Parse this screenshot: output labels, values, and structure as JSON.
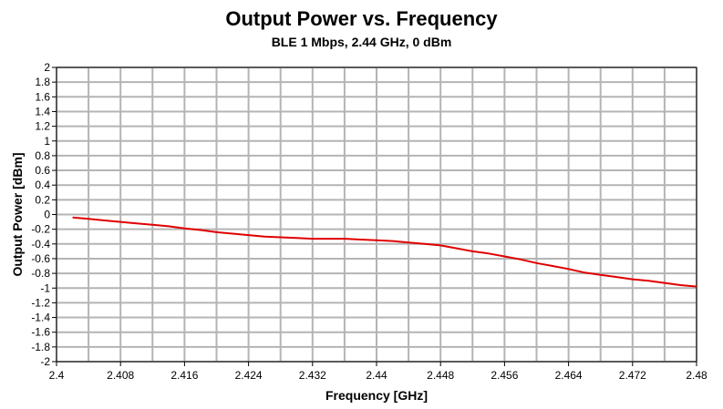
{
  "chart_data": {
    "type": "line",
    "title": "Output Power vs. Frequency",
    "subtitle": "BLE 1 Mbps, 2.44 GHz, 0 dBm",
    "xlabel": "Frequency [GHz]",
    "ylabel": "Output Power [dBm]",
    "xlim": [
      2.4,
      2.48
    ],
    "ylim": [
      -2,
      2
    ],
    "x_ticks": [
      "2.4",
      "2.408",
      "2.416",
      "2.424",
      "2.432",
      "2.44",
      "2.448",
      "2.456",
      "2.464",
      "2.472",
      "2.48"
    ],
    "y_ticks": [
      "2",
      "1.8",
      "1.6",
      "1.4",
      "1.2",
      "1",
      "0.8",
      "0.6",
      "0.4",
      "0.2",
      "0",
      "-0.2",
      "-0.4",
      "-0.6",
      "-0.8",
      "-1",
      "-1.2",
      "-1.4",
      "-1.6",
      "-1.8",
      "-2"
    ],
    "x_gridlines": [
      2.4,
      2.404,
      2.408,
      2.412,
      2.416,
      2.42,
      2.424,
      2.428,
      2.432,
      2.436,
      2.44,
      2.444,
      2.448,
      2.452,
      2.456,
      2.46,
      2.464,
      2.468,
      2.472,
      2.476,
      2.48
    ],
    "grid": true,
    "series": [
      {
        "name": "Output Power",
        "color": "#e00000",
        "x": [
          2.402,
          2.404,
          2.406,
          2.408,
          2.41,
          2.412,
          2.414,
          2.416,
          2.418,
          2.42,
          2.422,
          2.424,
          2.426,
          2.428,
          2.43,
          2.432,
          2.434,
          2.436,
          2.438,
          2.44,
          2.442,
          2.444,
          2.446,
          2.448,
          2.45,
          2.452,
          2.454,
          2.456,
          2.458,
          2.46,
          2.462,
          2.464,
          2.466,
          2.468,
          2.47,
          2.472,
          2.474,
          2.476,
          2.478,
          2.48
        ],
        "values": [
          -0.04,
          -0.06,
          -0.08,
          -0.1,
          -0.12,
          -0.14,
          -0.16,
          -0.19,
          -0.21,
          -0.24,
          -0.26,
          -0.28,
          -0.3,
          -0.31,
          -0.32,
          -0.33,
          -0.33,
          -0.33,
          -0.34,
          -0.35,
          -0.36,
          -0.38,
          -0.4,
          -0.42,
          -0.46,
          -0.5,
          -0.53,
          -0.57,
          -0.61,
          -0.66,
          -0.7,
          -0.74,
          -0.79,
          -0.82,
          -0.85,
          -0.88,
          -0.9,
          -0.93,
          -0.96,
          -0.98
        ]
      }
    ]
  }
}
